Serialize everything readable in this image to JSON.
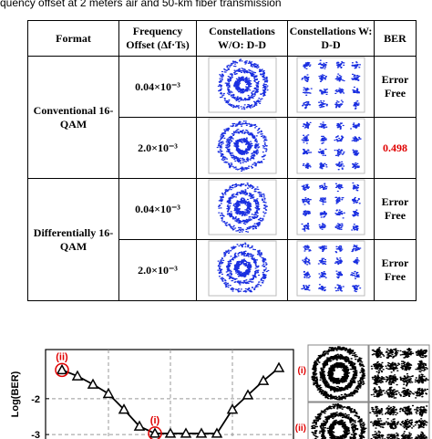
{
  "caption": "quency offset at 2 meters air and 50-km fiber transmission",
  "table": {
    "header": [
      "Format",
      "Frequency Offset (Δf·Ts)",
      "Constellations W/O: D-D",
      "Constellations W: D-D",
      "BER"
    ],
    "groups": [
      {
        "format": "Conventional 16-QAM",
        "rows": [
          {
            "offset": "0.04×10⁻³",
            "ber": "Error Free"
          },
          {
            "offset": "2.0×10⁻³",
            "ber": "0.498"
          }
        ]
      },
      {
        "format": "Differentially 16-QAM",
        "rows": [
          {
            "offset": "0.04×10⁻³",
            "ber": "Error Free"
          },
          {
            "offset": "2.0×10⁻³",
            "ber": "Error Free"
          }
        ]
      }
    ]
  },
  "chart_data": {
    "type": "line",
    "ylabel": "Log(BER)",
    "categories": [
      null,
      null,
      null,
      null,
      null,
      null,
      null,
      null,
      null,
      null,
      null,
      null,
      null,
      null,
      null
    ],
    "series": [
      {
        "color": "#000000",
        "values": [
          -1.2,
          -1.37,
          -1.6,
          -1.86,
          -2.3,
          -2.77,
          -2.97,
          -2.97,
          -2.97,
          -2.97,
          -2.97,
          -2.3,
          -1.9,
          -1.5,
          -1.14
        ]
      }
    ],
    "ylim": [
      -3.43,
      -0.63
    ],
    "yticks": [
      -2,
      -3
    ],
    "grid": true,
    "annotations": [
      "(ii)",
      "(i)"
    ],
    "inset_labels": [
      "(i)",
      "(ii)"
    ]
  }
}
